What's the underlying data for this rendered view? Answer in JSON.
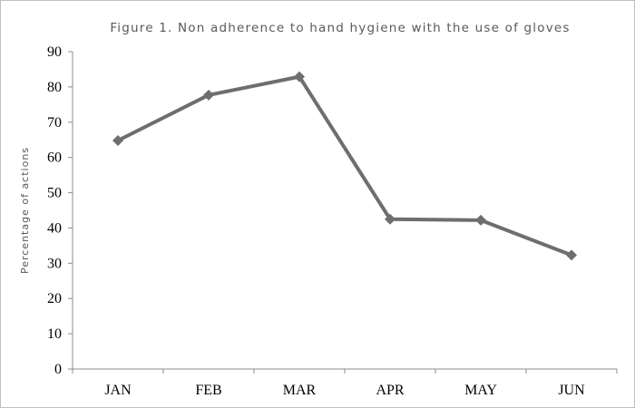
{
  "chart_data": {
    "type": "line",
    "title": "Figure 1. Non adherence to hand hygiene with the use of gloves",
    "ylabel": "Percentage of actions",
    "xlabel": "",
    "categories": [
      "JAN",
      "FEB",
      "MAR",
      "APR",
      "MAY",
      "JUN"
    ],
    "series": [
      {
        "values": [
          64.8,
          77.7,
          82.9,
          42.5,
          42.2,
          32.3
        ]
      }
    ],
    "ylim": [
      0,
      90
    ],
    "yticks": [
      0,
      10,
      20,
      30,
      40,
      50,
      60,
      70,
      80,
      90
    ],
    "grid": false,
    "legend": "none",
    "marker": "diamond",
    "colors": {
      "series": "#6e6e6e",
      "axis": "#8c8c8c",
      "title": "#595959"
    }
  }
}
